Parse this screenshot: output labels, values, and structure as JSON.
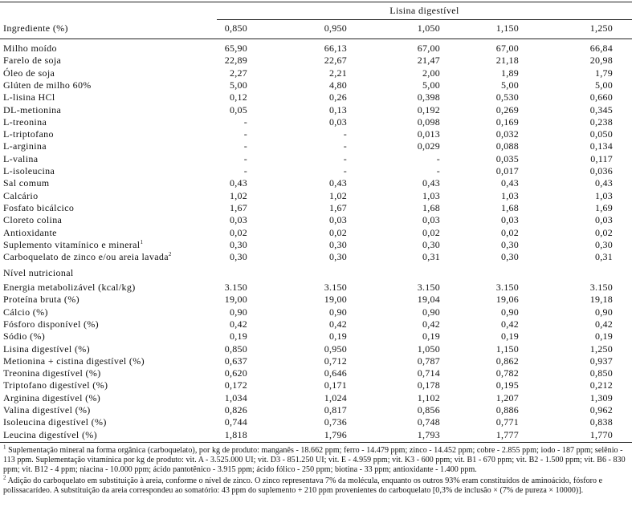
{
  "header": {
    "group_label": "Lisina digestível",
    "ingredient_col": "Ingrediente (%)",
    "levels": [
      "0,850",
      "0,950",
      "1,050",
      "1,150",
      "1,250"
    ]
  },
  "ingredients": [
    {
      "label": "Milho moído",
      "values": [
        "65,90",
        "66,13",
        "67,00",
        "67,00",
        "66,84"
      ]
    },
    {
      "label": "Farelo de soja",
      "values": [
        "22,89",
        "22,67",
        "21,47",
        "21,18",
        "20,98"
      ]
    },
    {
      "label": "Óleo de soja",
      "values": [
        "2,27",
        "2,21",
        "2,00",
        "1,89",
        "1,79"
      ]
    },
    {
      "label": "Glúten de milho 60%",
      "values": [
        "5,00",
        "4,80",
        "5,00",
        "5,00",
        "5,00"
      ]
    },
    {
      "label": "L-lisina HCl",
      "values": [
        "0,12",
        "0,26",
        "0,398",
        "0,530",
        "0,660"
      ]
    },
    {
      "label": "DL-metionina",
      "values": [
        "0,05",
        "0,13",
        "0,192",
        "0,269",
        "0,345"
      ]
    },
    {
      "label": "L-treonina",
      "values": [
        "-",
        "0,03",
        "0,098",
        "0,169",
        "0,238"
      ]
    },
    {
      "label": "L-triptofano",
      "values": [
        "-",
        "-",
        "0,013",
        "0,032",
        "0,050"
      ]
    },
    {
      "label": "L-arginina",
      "values": [
        "-",
        "-",
        "0,029",
        "0,088",
        "0,134"
      ]
    },
    {
      "label": "L-valina",
      "values": [
        "-",
        "-",
        "-",
        "0,035",
        "0,117"
      ]
    },
    {
      "label": "L-isoleucina",
      "values": [
        "-",
        "-",
        "-",
        "0,017",
        "0,036"
      ]
    },
    {
      "label": "Sal comum",
      "values": [
        "0,43",
        "0,43",
        "0,43",
        "0,43",
        "0,43"
      ]
    },
    {
      "label": "Calcário",
      "values": [
        "1,02",
        "1,02",
        "1,03",
        "1,03",
        "1,03"
      ]
    },
    {
      "label": "Fosfato bicálcico",
      "values": [
        "1,67",
        "1,67",
        "1,68",
        "1,68",
        "1,69"
      ]
    },
    {
      "label": "Cloreto colina",
      "values": [
        "0,03",
        "0,03",
        "0,03",
        "0,03",
        "0,03"
      ]
    },
    {
      "label": "Antioxidante",
      "values": [
        "0,02",
        "0,02",
        "0,02",
        "0,02",
        "0,02"
      ]
    },
    {
      "label": "Suplemento vitamínico e mineral",
      "sup": "1",
      "values": [
        "0,30",
        "0,30",
        "0,30",
        "0,30",
        "0,30"
      ]
    },
    {
      "label": "Carboquelato de zinco e/ou areia lavada",
      "sup": "2",
      "values": [
        "0,30",
        "0,30",
        "0,31",
        "0,30",
        "0,31"
      ]
    }
  ],
  "nutritional_title": "Nível nutricional",
  "nutritional": [
    {
      "label": "Energia metabolizável (kcal/kg)",
      "values": [
        "3.150",
        "3.150",
        "3.150",
        "3.150",
        "3.150"
      ]
    },
    {
      "label": "Proteína bruta (%)",
      "values": [
        "19,00",
        "19,00",
        "19,04",
        "19,06",
        "19,18"
      ]
    },
    {
      "label": "Cálcio (%)",
      "values": [
        "0,90",
        "0,90",
        "0,90",
        "0,90",
        "0,90"
      ]
    },
    {
      "label": "Fósforo disponível (%)",
      "values": [
        "0,42",
        "0,42",
        "0,42",
        "0,42",
        "0,42"
      ]
    },
    {
      "label": "Sódio (%)",
      "values": [
        "0,19",
        "0,19",
        "0,19",
        "0,19",
        "0,19"
      ]
    },
    {
      "label": "Lisina digestível (%)",
      "values": [
        "0,850",
        "0,950",
        "1,050",
        "1,150",
        "1,250"
      ]
    },
    {
      "label": "Metionina + cistina digestível (%)",
      "values": [
        "0,637",
        "0,712",
        "0,787",
        "0,862",
        "0,937"
      ]
    },
    {
      "label": "Treonina digestível (%)",
      "values": [
        "0,620",
        "0,646",
        "0,714",
        "0,782",
        "0,850"
      ]
    },
    {
      "label": "Triptofano digestível (%)",
      "values": [
        "0,172",
        "0,171",
        "0,178",
        "0,195",
        "0,212"
      ]
    },
    {
      "label": "Arginina digestível (%)",
      "values": [
        "1,034",
        "1,024",
        "1,102",
        "1,207",
        "1,309"
      ]
    },
    {
      "label": "Valina digestível (%)",
      "values": [
        "0,826",
        "0,817",
        "0,856",
        "0,886",
        "0,962"
      ]
    },
    {
      "label": "Isoleucina digestível (%)",
      "values": [
        "0,744",
        "0,736",
        "0,748",
        "0,771",
        "0,838"
      ]
    },
    {
      "label": "Leucina digestível (%)",
      "values": [
        "1,818",
        "1,796",
        "1,793",
        "1,777",
        "1,770"
      ]
    }
  ],
  "footnotes": [
    {
      "mark": "1",
      "text": "Suplementação mineral na forma orgânica (carboquelato), por kg de produto: manganês - 18.662 ppm; ferro - 14.479 ppm; zinco - 14.452 ppm; cobre - 2.855 ppm; iodo - 187 ppm; selênio - 113 ppm. Suplementação vitamínica por kg de produto: vit. A - 3.525.000 UI; vit. D3 - 851.250 UI; vit. E - 4.959 ppm; vit. K3 - 600 ppm; vit. B1 - 670 ppm; vit. B2 - 1.500 ppm; vit. B6 - 830 ppm; vit. B12 - 4 ppm; niacina - 10.000 ppm; ácido pantotênico - 3.915 ppm; ácido fólico - 250 ppm; biotina - 33 ppm; antioxidante - 1.400 ppm."
    },
    {
      "mark": "2",
      "text": "Adição do carboquelato em substituição à areia, conforme o nível de zinco. O zinco representava 7% da molécula, enquanto os outros 93% eram constituídos de aminoácido, fósforo e polissacarídeo. A substituição da areia correspondeu ao somatório: 43 ppm do suplemento + 210 ppm provenientes do carboquelato [0,3% de inclusão × (7% de pureza × 10000)]."
    }
  ]
}
